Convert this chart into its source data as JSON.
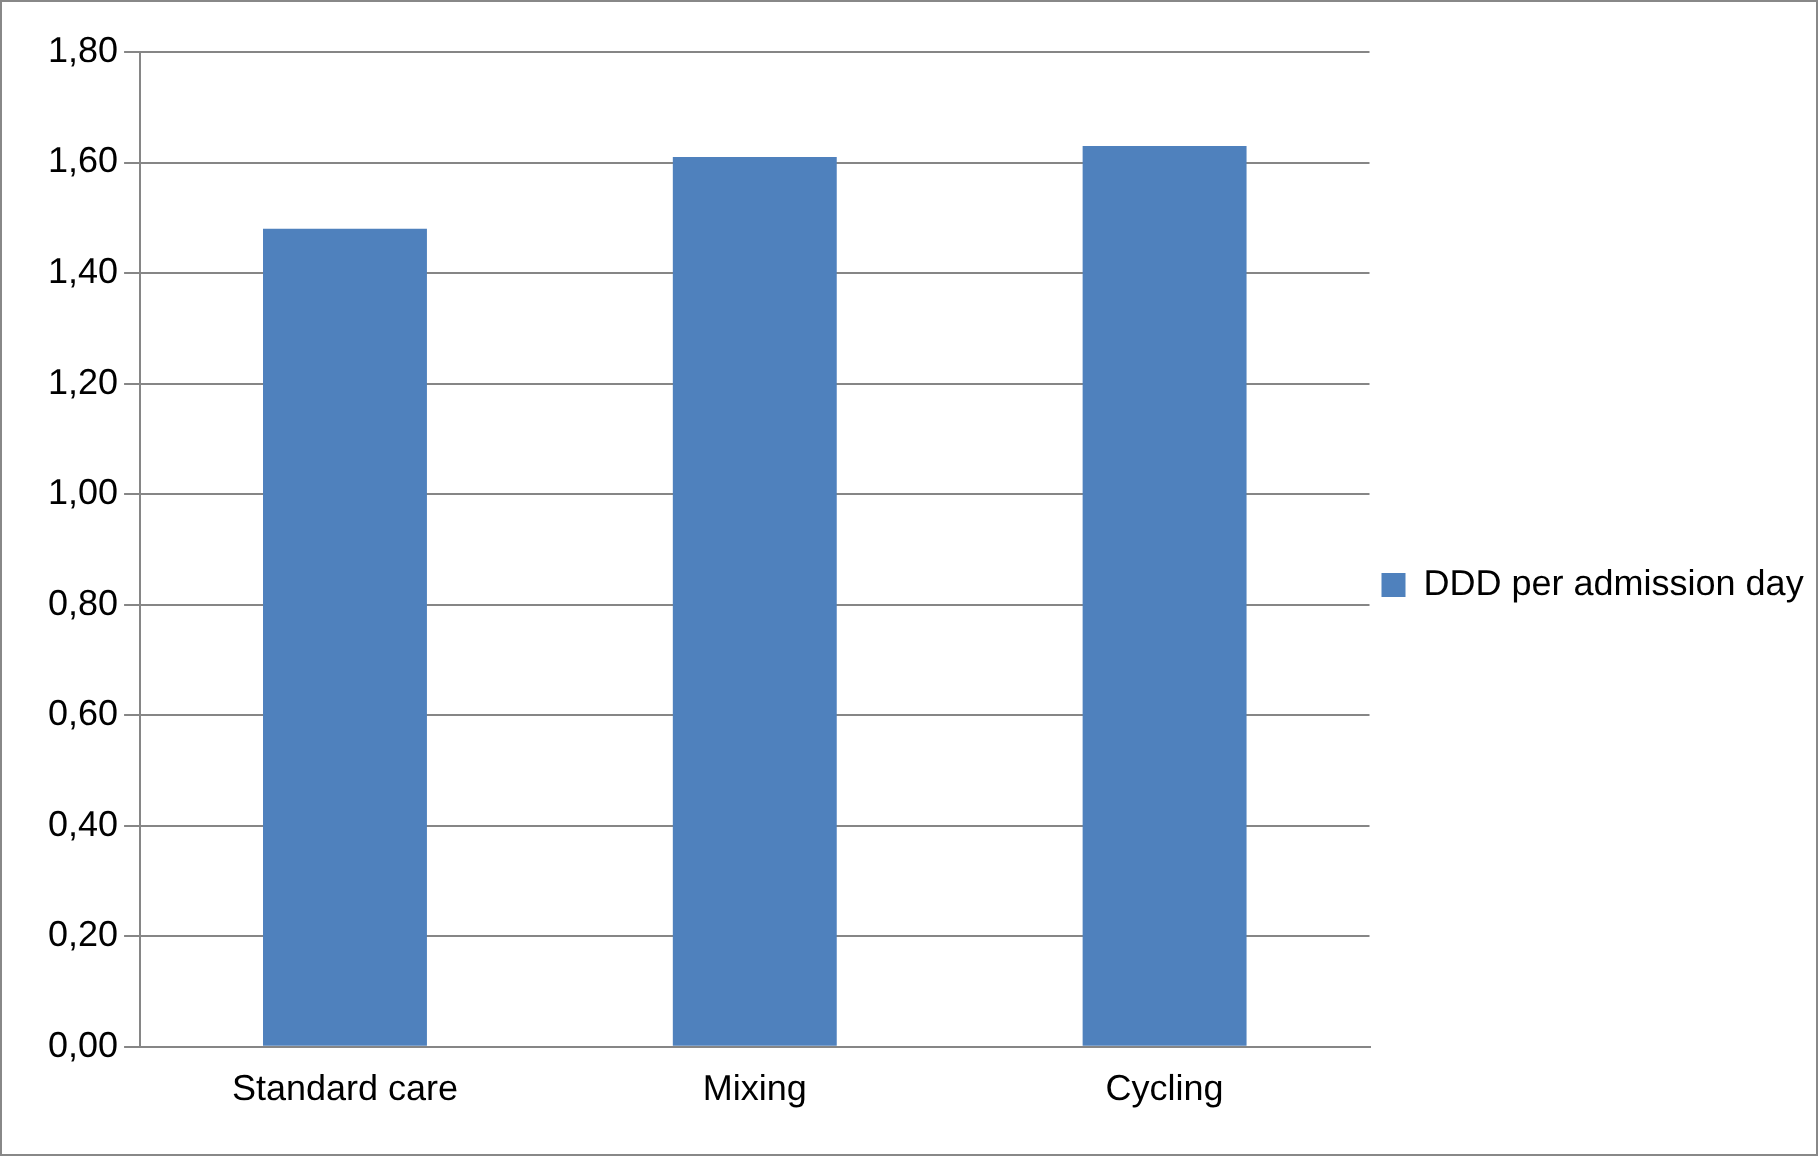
{
  "chart_data": {
    "type": "bar",
    "categories": [
      "Standard care",
      "Mixing",
      "Cycling"
    ],
    "series": [
      {
        "name": "DDD per admission day",
        "color": "#4f81bd",
        "values": [
          1.48,
          1.61,
          1.63
        ]
      }
    ],
    "ylim": [
      0,
      1.8
    ],
    "yticks": [
      {
        "value": 0,
        "label": "0,00"
      },
      {
        "value": 0.2,
        "label": "0,20"
      },
      {
        "value": 0.4,
        "label": "0,40"
      },
      {
        "value": 0.6,
        "label": "0,60"
      },
      {
        "value": 0.8,
        "label": "0,80"
      },
      {
        "value": 1.0,
        "label": "1,00"
      },
      {
        "value": 1.2,
        "label": "1,20"
      },
      {
        "value": 1.4,
        "label": "1,40"
      },
      {
        "value": 1.6,
        "label": "1,60"
      },
      {
        "value": 1.8,
        "label": "1,80"
      }
    ],
    "grid": "y",
    "legend": "right"
  }
}
